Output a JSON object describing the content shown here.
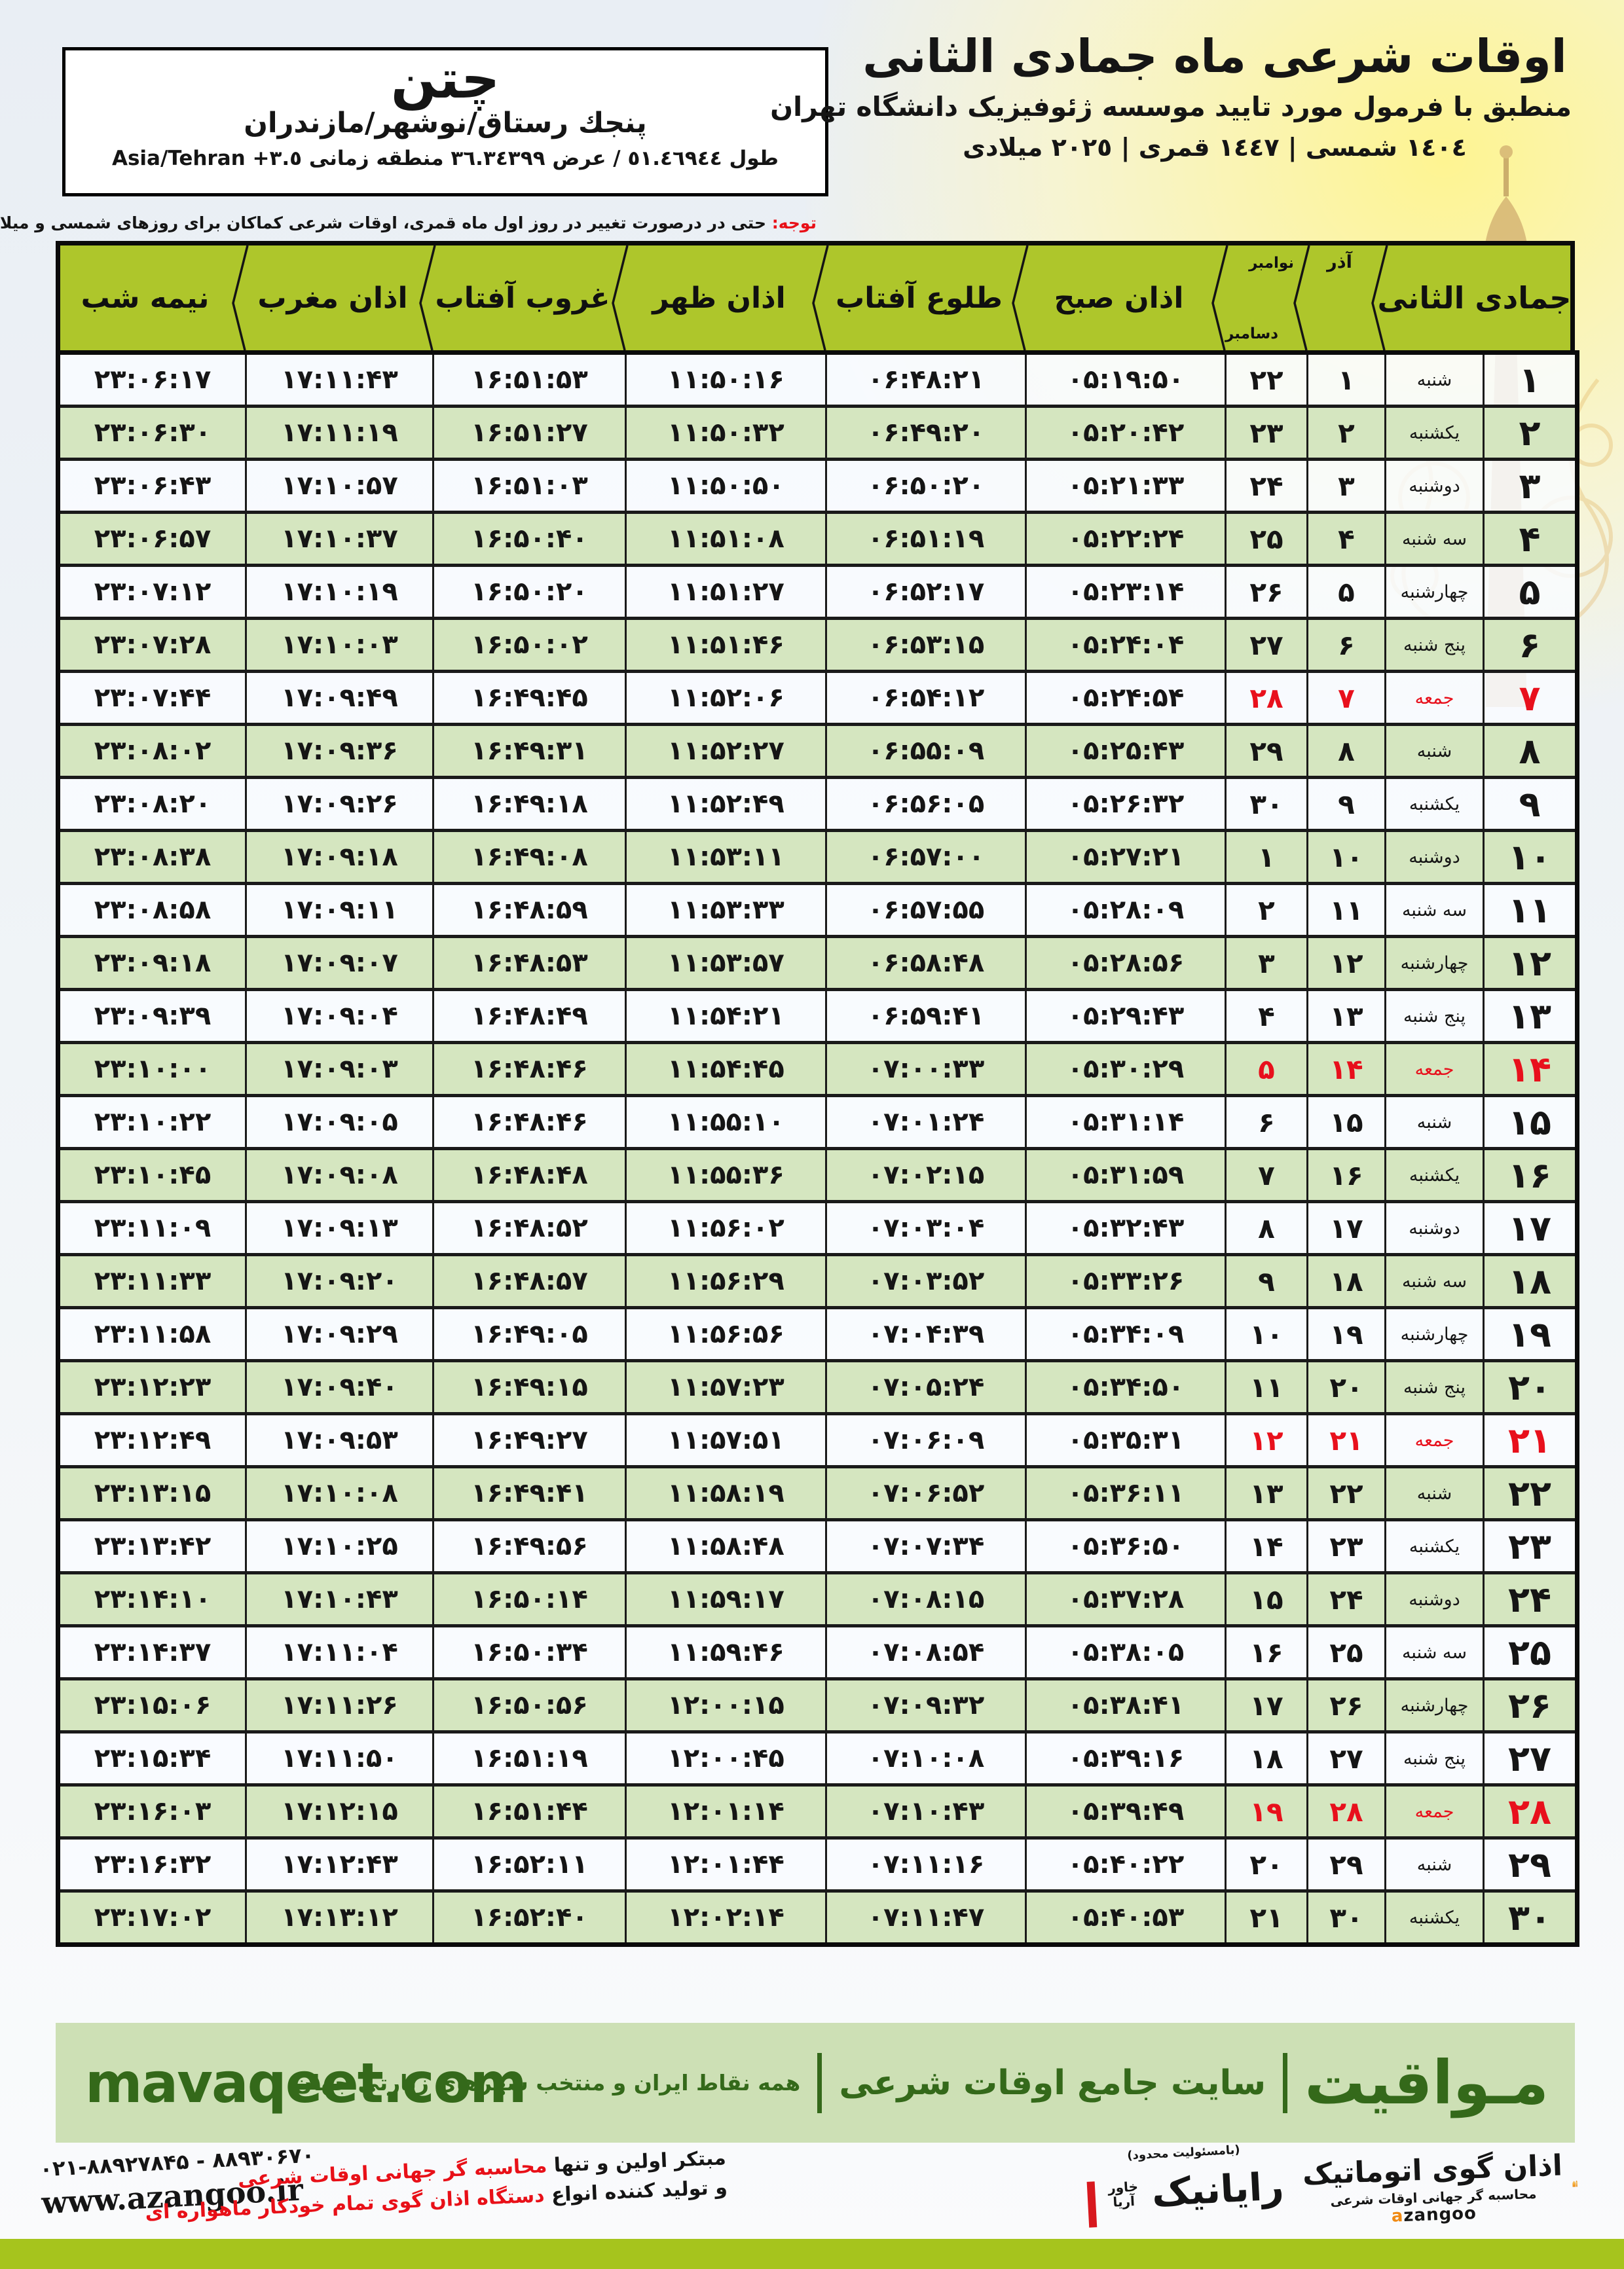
{
  "location": {
    "name": "چتن",
    "region": "پنجك رستاق/نوشهر/مازندران",
    "coords": "طول ٥١.٤٦٩٤٤ / عرض ٣٦.٣٤٣٩٩ منطقه زمانی",
    "timezone": "Asia/Tehran +٣.٥"
  },
  "header": {
    "title": "اوقات شرعی ماه جمادی الثانی",
    "subtitle": "منطبق با فرمول مورد تایید موسسه ژئوفیزیک دانشگاه تهران",
    "dates": "١٤٠٤ شمسی | ١٤٤٧ قمری | ٢٠٢٥ میلادی"
  },
  "notice": {
    "label": "توجه:",
    "text": "حتی در درصورت تغییر در روز اول ماه قمری، اوقات شرعی کماکان برای روزهای شمسی و میلادی معتبر است."
  },
  "table": {
    "columns": {
      "month_group": "جمادی الثانی",
      "azar": "آذر",
      "greg_nov": "نوامبر",
      "greg_dec": "دسامبر",
      "fajr": "اذان صبح",
      "sunrise": "طلوع آفتاب",
      "dhuhr": "اذان ظهر",
      "sunset": "غروب آفتاب",
      "maghrib": "اذان مغرب",
      "midnight": "نیمه شب"
    },
    "numerals": "persian",
    "rows": [
      {
        "day": 1,
        "weekday": "شنبه",
        "azar": 1,
        "greg": 22,
        "friday": false,
        "fajr": "05:19:50",
        "sunrise": "06:48:21",
        "dhuhr": "11:50:16",
        "sunset": "16:51:53",
        "maghrib": "17:11:43",
        "midnight": "23:06:17"
      },
      {
        "day": 2,
        "weekday": "یکشنبه",
        "azar": 2,
        "greg": 23,
        "friday": false,
        "fajr": "05:20:42",
        "sunrise": "06:49:20",
        "dhuhr": "11:50:32",
        "sunset": "16:51:27",
        "maghrib": "17:11:19",
        "midnight": "23:06:30"
      },
      {
        "day": 3,
        "weekday": "دوشنبه",
        "azar": 3,
        "greg": 24,
        "friday": false,
        "fajr": "05:21:33",
        "sunrise": "06:50:20",
        "dhuhr": "11:50:50",
        "sunset": "16:51:03",
        "maghrib": "17:10:57",
        "midnight": "23:06:43"
      },
      {
        "day": 4,
        "weekday": "سه شنبه",
        "azar": 4,
        "greg": 25,
        "friday": false,
        "fajr": "05:22:24",
        "sunrise": "06:51:19",
        "dhuhr": "11:51:08",
        "sunset": "16:50:40",
        "maghrib": "17:10:37",
        "midnight": "23:06:57"
      },
      {
        "day": 5,
        "weekday": "چهارشنبه",
        "azar": 5,
        "greg": 26,
        "friday": false,
        "fajr": "05:23:14",
        "sunrise": "06:52:17",
        "dhuhr": "11:51:27",
        "sunset": "16:50:20",
        "maghrib": "17:10:19",
        "midnight": "23:07:12"
      },
      {
        "day": 6,
        "weekday": "پنج شنبه",
        "azar": 6,
        "greg": 27,
        "friday": false,
        "fajr": "05:24:04",
        "sunrise": "06:53:15",
        "dhuhr": "11:51:46",
        "sunset": "16:50:02",
        "maghrib": "17:10:03",
        "midnight": "23:07:28"
      },
      {
        "day": 7,
        "weekday": "جمعه",
        "azar": 7,
        "greg": 28,
        "friday": true,
        "fajr": "05:24:54",
        "sunrise": "06:54:12",
        "dhuhr": "11:52:06",
        "sunset": "16:49:45",
        "maghrib": "17:09:49",
        "midnight": "23:07:44"
      },
      {
        "day": 8,
        "weekday": "شنبه",
        "azar": 8,
        "greg": 29,
        "friday": false,
        "fajr": "05:25:43",
        "sunrise": "06:55:09",
        "dhuhr": "11:52:27",
        "sunset": "16:49:31",
        "maghrib": "17:09:36",
        "midnight": "23:08:02"
      },
      {
        "day": 9,
        "weekday": "یکشنبه",
        "azar": 9,
        "greg": 30,
        "friday": false,
        "fajr": "05:26:32",
        "sunrise": "06:56:05",
        "dhuhr": "11:52:49",
        "sunset": "16:49:18",
        "maghrib": "17:09:26",
        "midnight": "23:08:20"
      },
      {
        "day": 10,
        "weekday": "دوشنبه",
        "azar": 10,
        "greg": 1,
        "friday": false,
        "fajr": "05:27:21",
        "sunrise": "06:57:00",
        "dhuhr": "11:53:11",
        "sunset": "16:49:08",
        "maghrib": "17:09:18",
        "midnight": "23:08:38"
      },
      {
        "day": 11,
        "weekday": "سه شنبه",
        "azar": 11,
        "greg": 2,
        "friday": false,
        "fajr": "05:28:09",
        "sunrise": "06:57:55",
        "dhuhr": "11:53:33",
        "sunset": "16:48:59",
        "maghrib": "17:09:11",
        "midnight": "23:08:58"
      },
      {
        "day": 12,
        "weekday": "چهارشنبه",
        "azar": 12,
        "greg": 3,
        "friday": false,
        "fajr": "05:28:56",
        "sunrise": "06:58:48",
        "dhuhr": "11:53:57",
        "sunset": "16:48:53",
        "maghrib": "17:09:07",
        "midnight": "23:09:18"
      },
      {
        "day": 13,
        "weekday": "پنج شنبه",
        "azar": 13,
        "greg": 4,
        "friday": false,
        "fajr": "05:29:43",
        "sunrise": "06:59:41",
        "dhuhr": "11:54:21",
        "sunset": "16:48:49",
        "maghrib": "17:09:04",
        "midnight": "23:09:39"
      },
      {
        "day": 14,
        "weekday": "جمعه",
        "azar": 14,
        "greg": 5,
        "friday": true,
        "fajr": "05:30:29",
        "sunrise": "07:00:33",
        "dhuhr": "11:54:45",
        "sunset": "16:48:46",
        "maghrib": "17:09:03",
        "midnight": "23:10:00"
      },
      {
        "day": 15,
        "weekday": "شنبه",
        "azar": 15,
        "greg": 6,
        "friday": false,
        "fajr": "05:31:14",
        "sunrise": "07:01:24",
        "dhuhr": "11:55:10",
        "sunset": "16:48:46",
        "maghrib": "17:09:05",
        "midnight": "23:10:22"
      },
      {
        "day": 16,
        "weekday": "یکشنبه",
        "azar": 16,
        "greg": 7,
        "friday": false,
        "fajr": "05:31:59",
        "sunrise": "07:02:15",
        "dhuhr": "11:55:36",
        "sunset": "16:48:48",
        "maghrib": "17:09:08",
        "midnight": "23:10:45"
      },
      {
        "day": 17,
        "weekday": "دوشنبه",
        "azar": 17,
        "greg": 8,
        "friday": false,
        "fajr": "05:32:43",
        "sunrise": "07:03:04",
        "dhuhr": "11:56:02",
        "sunset": "16:48:52",
        "maghrib": "17:09:13",
        "midnight": "23:11:09"
      },
      {
        "day": 18,
        "weekday": "سه شنبه",
        "azar": 18,
        "greg": 9,
        "friday": false,
        "fajr": "05:33:26",
        "sunrise": "07:03:52",
        "dhuhr": "11:56:29",
        "sunset": "16:48:57",
        "maghrib": "17:09:20",
        "midnight": "23:11:33"
      },
      {
        "day": 19,
        "weekday": "چهارشنبه",
        "azar": 19,
        "greg": 10,
        "friday": false,
        "fajr": "05:34:09",
        "sunrise": "07:04:39",
        "dhuhr": "11:56:56",
        "sunset": "16:49:05",
        "maghrib": "17:09:29",
        "midnight": "23:11:58"
      },
      {
        "day": 20,
        "weekday": "پنج شنبه",
        "azar": 20,
        "greg": 11,
        "friday": false,
        "fajr": "05:34:50",
        "sunrise": "07:05:24",
        "dhuhr": "11:57:23",
        "sunset": "16:49:15",
        "maghrib": "17:09:40",
        "midnight": "23:12:23"
      },
      {
        "day": 21,
        "weekday": "جمعه",
        "azar": 21,
        "greg": 12,
        "friday": true,
        "fajr": "05:35:31",
        "sunrise": "07:06:09",
        "dhuhr": "11:57:51",
        "sunset": "16:49:27",
        "maghrib": "17:09:53",
        "midnight": "23:12:49"
      },
      {
        "day": 22,
        "weekday": "شنبه",
        "azar": 22,
        "greg": 13,
        "friday": false,
        "fajr": "05:36:11",
        "sunrise": "07:06:52",
        "dhuhr": "11:58:19",
        "sunset": "16:49:41",
        "maghrib": "17:10:08",
        "midnight": "23:13:15"
      },
      {
        "day": 23,
        "weekday": "یکشنبه",
        "azar": 23,
        "greg": 14,
        "friday": false,
        "fajr": "05:36:50",
        "sunrise": "07:07:34",
        "dhuhr": "11:58:48",
        "sunset": "16:49:56",
        "maghrib": "17:10:25",
        "midnight": "23:13:42"
      },
      {
        "day": 24,
        "weekday": "دوشنبه",
        "azar": 24,
        "greg": 15,
        "friday": false,
        "fajr": "05:37:28",
        "sunrise": "07:08:15",
        "dhuhr": "11:59:17",
        "sunset": "16:50:14",
        "maghrib": "17:10:43",
        "midnight": "23:14:10"
      },
      {
        "day": 25,
        "weekday": "سه شنبه",
        "azar": 25,
        "greg": 16,
        "friday": false,
        "fajr": "05:38:05",
        "sunrise": "07:08:54",
        "dhuhr": "11:59:46",
        "sunset": "16:50:34",
        "maghrib": "17:11:04",
        "midnight": "23:14:37"
      },
      {
        "day": 26,
        "weekday": "چهارشنبه",
        "azar": 26,
        "greg": 17,
        "friday": false,
        "fajr": "05:38:41",
        "sunrise": "07:09:32",
        "dhuhr": "12:00:15",
        "sunset": "16:50:56",
        "maghrib": "17:11:26",
        "midnight": "23:15:06"
      },
      {
        "day": 27,
        "weekday": "پنج شنبه",
        "azar": 27,
        "greg": 18,
        "friday": false,
        "fajr": "05:39:16",
        "sunrise": "07:10:08",
        "dhuhr": "12:00:45",
        "sunset": "16:51:19",
        "maghrib": "17:11:50",
        "midnight": "23:15:34"
      },
      {
        "day": 28,
        "weekday": "جمعه",
        "azar": 28,
        "greg": 19,
        "friday": true,
        "fajr": "05:39:49",
        "sunrise": "07:10:43",
        "dhuhr": "12:01:14",
        "sunset": "16:51:44",
        "maghrib": "17:12:15",
        "midnight": "23:16:03"
      },
      {
        "day": 29,
        "weekday": "شنبه",
        "azar": 29,
        "greg": 20,
        "friday": false,
        "fajr": "05:40:22",
        "sunrise": "07:11:16",
        "dhuhr": "12:01:44",
        "sunset": "16:52:11",
        "maghrib": "17:12:43",
        "midnight": "23:16:32"
      },
      {
        "day": 30,
        "weekday": "یکشنبه",
        "azar": 30,
        "greg": 21,
        "friday": false,
        "fajr": "05:40:53",
        "sunrise": "07:11:47",
        "dhuhr": "12:02:14",
        "sunset": "16:52:40",
        "maghrib": "17:13:12",
        "midnight": "23:17:02"
      }
    ]
  },
  "mavaqeet": {
    "brand": "مـواقیت",
    "site_desc": "سایت جامع اوقات شرعی",
    "coverage": "همه نقاط ایران و منتخب شهرهای زیارتی جهان",
    "domain": "mavaqeet.com"
  },
  "footer": {
    "slogan_black_1": "مبتکر اولین و تنها",
    "slogan_red_1": "محاسبه گر جهانی اوقات شرعی",
    "slogan_black_2": "و تولید کننده انواع",
    "slogan_red_2": "دستگاه اذان گوی تمام خودکار ماهواره ای",
    "phone": "۰۲۱-۸۸۹۲۷۸۴۵ - ۸۸۹۳۰۶۷۰",
    "website": "www.azangoo.ir",
    "rayanik_note": "(بامسئولیت محدود)",
    "rayanik_name": "رایانیک",
    "rayanik_vertical": "خاور آریا",
    "azangoo_title": "اذان گوی اتوماتیک",
    "azangoo_sub": "محاسبه گر جهانی اوقات شرعی",
    "azangoo_latin_a": "a",
    "azangoo_latin_rest": "zangoo"
  },
  "colors": {
    "header_green": "#aec62b",
    "row_green": "#d5e6c0",
    "band_green": "#cde0b5",
    "strip_green": "#a6c41d",
    "dark_green": "#34691a",
    "notice_red": "#e81018",
    "friday_red": "#e8101c",
    "azangoo_orange": "#f08a13"
  }
}
